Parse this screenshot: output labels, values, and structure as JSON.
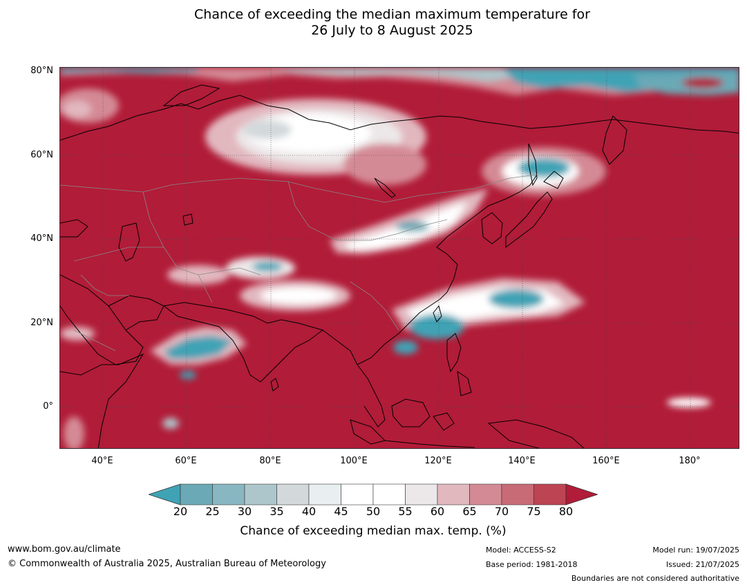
{
  "title": {
    "line1": "Chance of exceeding the median maximum temperature for",
    "line2": "26 July to 8 August 2025"
  },
  "map": {
    "lat_labels": [
      "80°N",
      "60°N",
      "40°N",
      "20°N",
      "0°"
    ],
    "lon_labels": [
      "40°E",
      "60°E",
      "80°E",
      "100°E",
      "120°E",
      "140°E",
      "160°E",
      "180°"
    ]
  },
  "colorbar": {
    "ticks": [
      "20",
      "25",
      "30",
      "35",
      "40",
      "45",
      "50",
      "55",
      "60",
      "65",
      "70",
      "75",
      "80"
    ],
    "colors": [
      "#3fa3b5",
      "#6ba9b6",
      "#89b7c1",
      "#adc6cb",
      "#d3d9db",
      "#e9eff0",
      "#ffffff",
      "#ffffff",
      "#ece7e8",
      "#e2b8bf",
      "#d48a95",
      "#c86b77",
      "#bd4452",
      "#b11c38"
    ],
    "label": "Chance of exceeding median max. temp. (%)"
  },
  "footer": {
    "website": "www.bom.gov.au/climate",
    "copyright": "© Commonwealth of Australia 2025, Australian Bureau of Meteorology",
    "model": "Model: ACCESS-S2",
    "base_period": "Base period: 1981-2018",
    "model_run": "Model run: 19/07/2025",
    "issued": "Issued: 21/07/2025",
    "boundaries": "Boundaries are not considered authoritative"
  }
}
